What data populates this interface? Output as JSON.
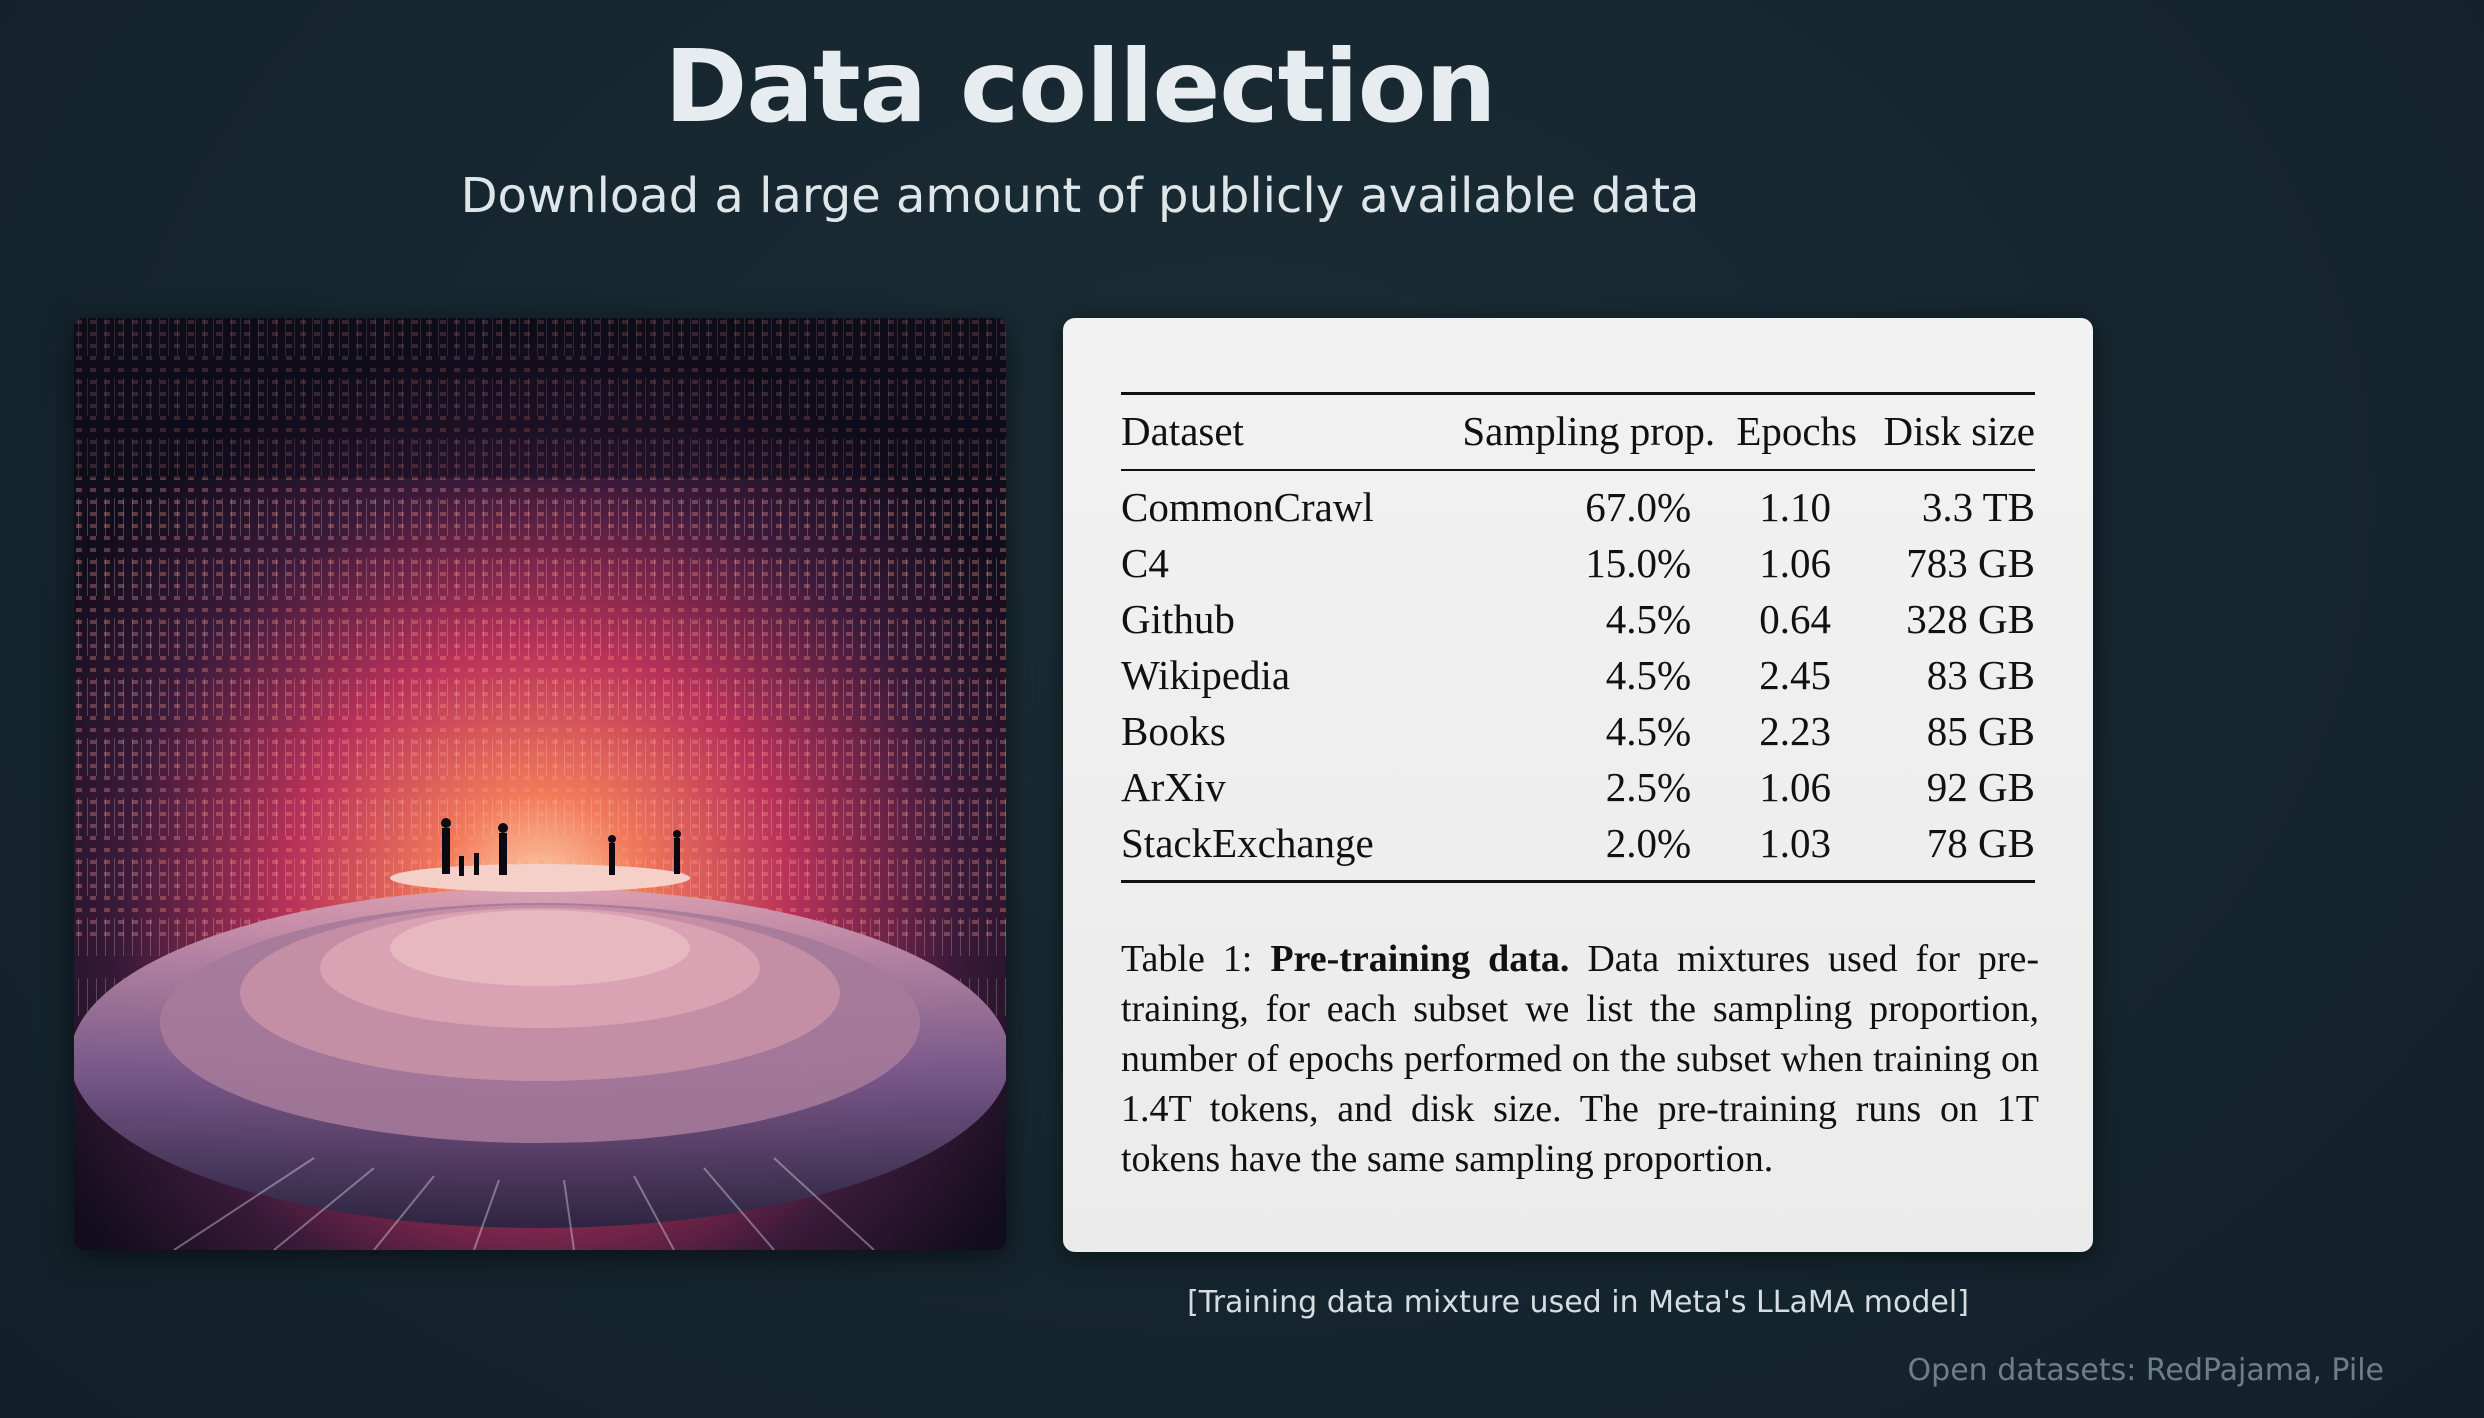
{
  "slide": {
    "title": "Data collection",
    "subtitle": "Download a large amount of publicly available data"
  },
  "table": {
    "headers": [
      "Dataset",
      "Sampling prop.",
      "Epochs",
      "Disk size"
    ],
    "rows": [
      [
        "CommonCrawl",
        "67.0%",
        "1.10",
        "3.3 TB"
      ],
      [
        "C4",
        "15.0%",
        "1.06",
        "783 GB"
      ],
      [
        "Github",
        "4.5%",
        "0.64",
        "328 GB"
      ],
      [
        "Wikipedia",
        "4.5%",
        "2.45",
        "83 GB"
      ],
      [
        "Books",
        "4.5%",
        "2.23",
        "85 GB"
      ],
      [
        "ArXiv",
        "2.5%",
        "1.06",
        "92 GB"
      ],
      [
        "StackExchange",
        "2.0%",
        "1.03",
        "78 GB"
      ]
    ],
    "caption_label": "Table 1: ",
    "caption_bold": "Pre-training data.",
    "caption_text": " Data mixtures used for pre-training, for each subset we list the sampling proportion, number of epochs performed on the subset when training on 1.4T tokens, and disk size. The pre-training runs on 1T tokens have the same sampling proportion."
  },
  "source_note": "[Training data mixture used in Meta's LLaMA model]",
  "footer_note": "Open datasets: RedPajama, Pile",
  "colors": {
    "background": "#15252e",
    "card": "#efefef",
    "accent_glow": "#e0506a"
  }
}
